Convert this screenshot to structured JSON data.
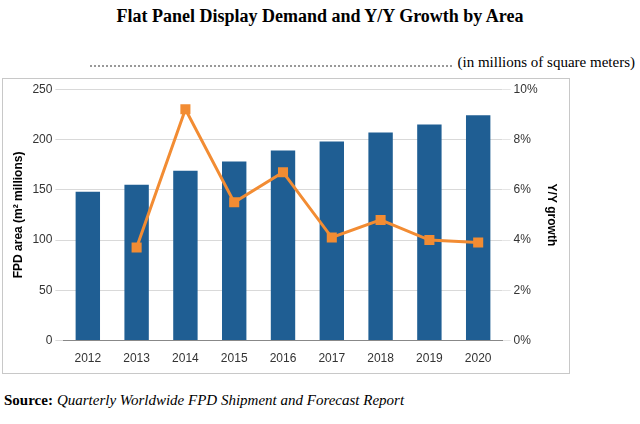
{
  "chart_data": {
    "type": "bar",
    "title": "Flat Panel Display Demand and Y/Y Growth by Area",
    "subtitle": "(in millions of square meters)",
    "source_label": "Source:",
    "source": "Quarterly Worldwide FPD Shipment and Forecast Report",
    "categories": [
      "2012",
      "2013",
      "2014",
      "2015",
      "2016",
      "2017",
      "2018",
      "2019",
      "2020"
    ],
    "y_label": "FPD area (m² millions)",
    "y2_label": "Y/Y growth",
    "series": [
      {
        "type": "bar",
        "color": "#1f5e93",
        "values": [
          148,
          155,
          169,
          178,
          189,
          198,
          207,
          215,
          224
        ]
      },
      {
        "type": "line",
        "axis": "y2",
        "color": "#f28c33",
        "marker": "square",
        "values": [
          null,
          3.7,
          9.2,
          5.5,
          6.7,
          4.1,
          4.8,
          4.0,
          3.9
        ]
      }
    ],
    "ylim": [
      0,
      250
    ],
    "yticks": [
      0,
      50,
      100,
      150,
      200,
      250
    ],
    "y2lim": [
      0,
      10
    ],
    "y2ticks": [
      {
        "value": 0,
        "label": "0%"
      },
      {
        "value": 2,
        "label": "2%"
      },
      {
        "value": 4,
        "label": "4%"
      },
      {
        "value": 6,
        "label": "6%"
      },
      {
        "value": 8,
        "label": "8%"
      },
      {
        "value": 10,
        "label": "10%"
      }
    ],
    "grid": true
  }
}
